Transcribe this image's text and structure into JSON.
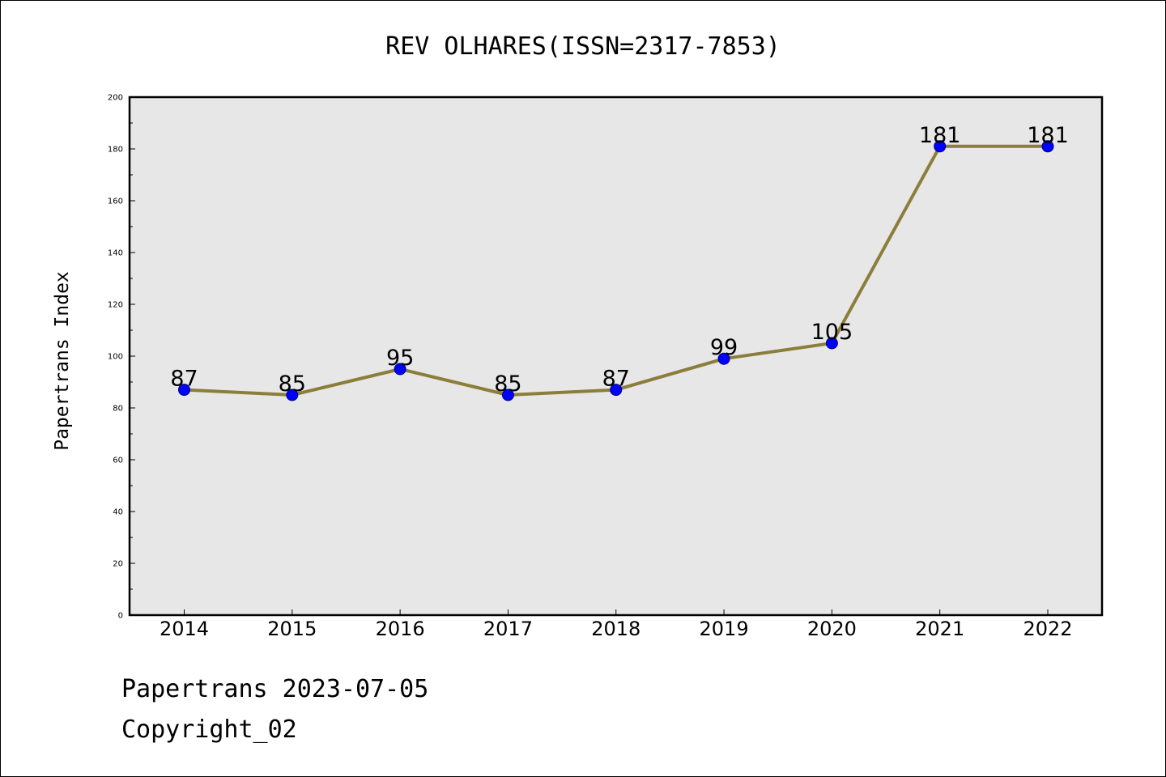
{
  "footer": {
    "line1": "Papertrans 2023-07-05",
    "line2": "Copyright_02"
  },
  "colors": {
    "plot_background": "#e7e7e7",
    "line": "#8b7d3a",
    "marker_fill": "#0000ff",
    "marker_edge": "#000080"
  },
  "chart_data": {
    "type": "line",
    "title": "REV OLHARES(ISSN=2317-7853)",
    "xlabel": "",
    "ylabel": "Papertrans Index",
    "categories": [
      "2014",
      "2015",
      "2016",
      "2017",
      "2018",
      "2019",
      "2020",
      "2021",
      "2022"
    ],
    "values": [
      87,
      85,
      95,
      85,
      87,
      99,
      105,
      181,
      181
    ],
    "ylim": [
      0,
      200
    ],
    "yticks": [
      0,
      20,
      40,
      60,
      80,
      100,
      120,
      140,
      160,
      180,
      200
    ],
    "data_labels": [
      "87",
      "85",
      "95",
      "85",
      "87",
      "99",
      "105",
      "181",
      "181"
    ],
    "grid": false,
    "legend": "none"
  }
}
